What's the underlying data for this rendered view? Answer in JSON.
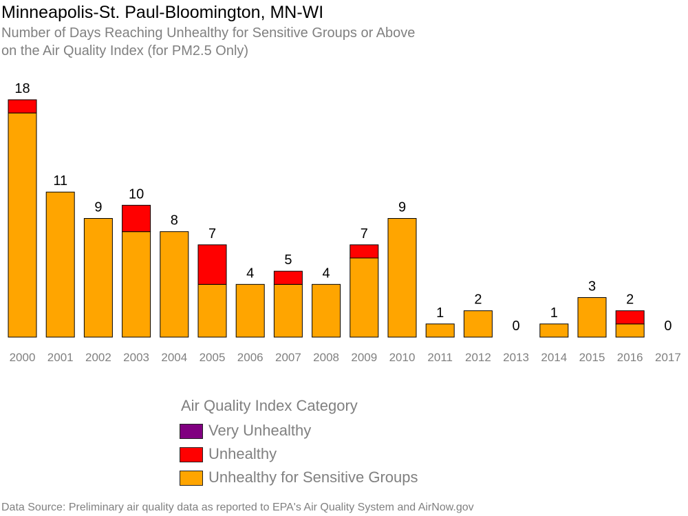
{
  "chart_data": {
    "type": "bar",
    "stacked": true,
    "title": "Minneapolis-St. Paul-Bloomington, MN-WI",
    "subtitle": [
      "Number of Days Reaching Unhealthy for Sensitive Groups or Above",
      "on the Air Quality Index (for PM2.5 Only)"
    ],
    "categories": [
      "2000",
      "2001",
      "2002",
      "2003",
      "2004",
      "2005",
      "2006",
      "2007",
      "2008",
      "2009",
      "2010",
      "2011",
      "2012",
      "2013",
      "2014",
      "2015",
      "2016",
      "2017"
    ],
    "series": [
      {
        "name": "Unhealthy for Sensitive Groups",
        "color": "#FFA500",
        "values": [
          17,
          11,
          9,
          8,
          8,
          4,
          4,
          4,
          4,
          6,
          9,
          1,
          2,
          0,
          1,
          3,
          1,
          0
        ]
      },
      {
        "name": "Unhealthy",
        "color": "#FF0000",
        "values": [
          1,
          0,
          0,
          2,
          0,
          3,
          0,
          1,
          0,
          1,
          0,
          0,
          0,
          0,
          0,
          0,
          1,
          0
        ]
      },
      {
        "name": "Very Unhealthy",
        "color": "#800080",
        "values": [
          0,
          0,
          0,
          0,
          0,
          0,
          0,
          0,
          0,
          0,
          0,
          0,
          0,
          0,
          0,
          0,
          0,
          0
        ]
      }
    ],
    "totals": [
      "18",
      "11",
      "9",
      "10",
      "8",
      "7",
      "4",
      "5",
      "4",
      "7",
      "9",
      "1",
      "2",
      "0",
      "1",
      "3",
      "2",
      "0"
    ],
    "ylim": [
      0,
      18
    ],
    "grid": false,
    "legend": {
      "title": "Air Quality Index Category",
      "placement": "bottom",
      "items": [
        {
          "label": "Very Unhealthy",
          "color": "#800080"
        },
        {
          "label": "Unhealthy",
          "color": "#FF0000"
        },
        {
          "label": "Unhealthy for Sensitive Groups",
          "color": "#FFA500"
        }
      ]
    },
    "source": "Data Source: Preliminary air quality data as reported to EPA's Air Quality System and AirNow.gov"
  }
}
